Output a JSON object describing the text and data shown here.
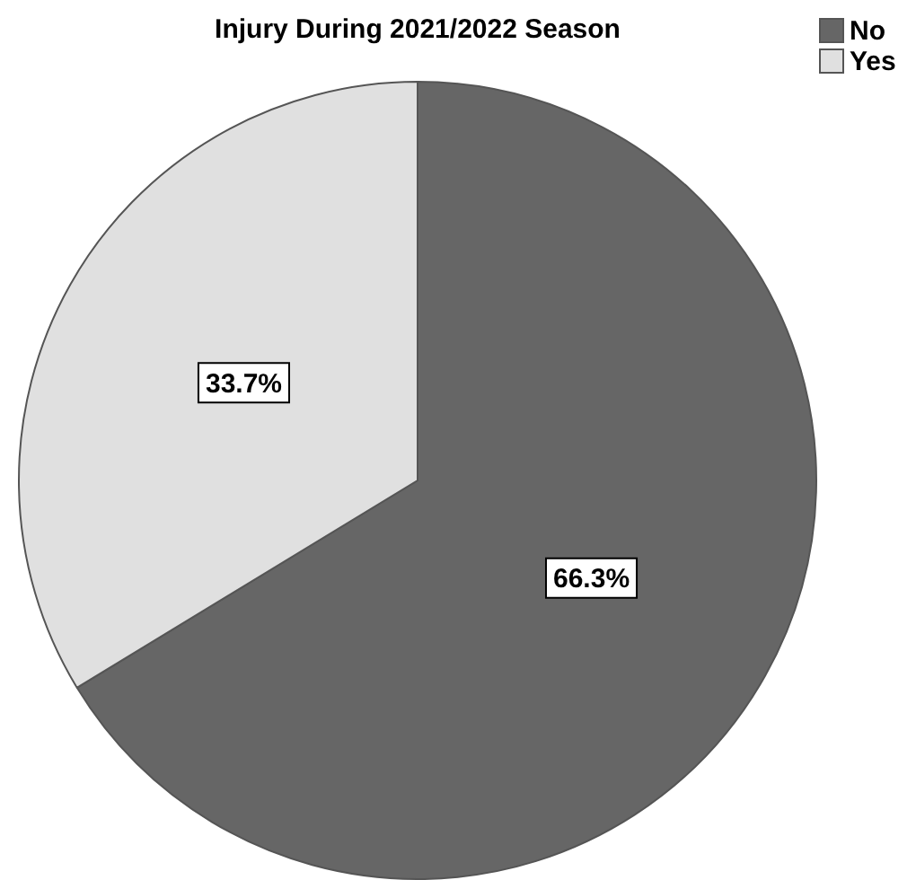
{
  "chart_data": {
    "type": "pie",
    "title": "Injury During 2021/2022 Season",
    "categories": [
      "No",
      "Yes"
    ],
    "values": [
      66.3,
      33.7
    ],
    "colors": [
      "#666666",
      "#e0e0e0"
    ],
    "value_labels": [
      "66.3%",
      "33.7%"
    ],
    "legend": "top right"
  }
}
